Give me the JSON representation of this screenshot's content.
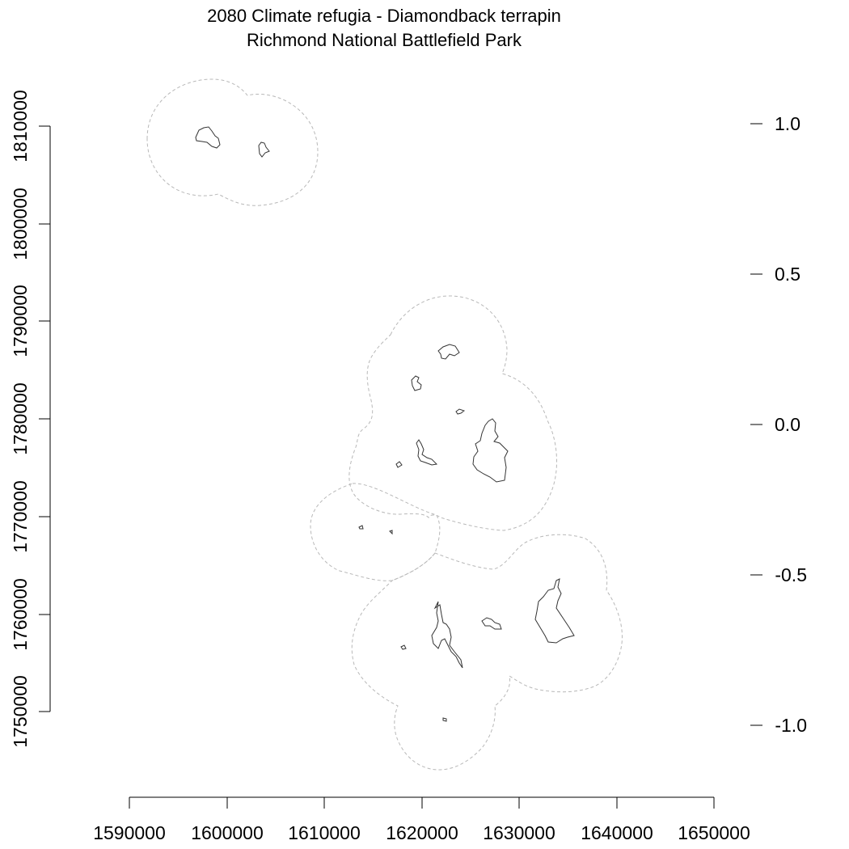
{
  "title": {
    "line1": "2080 Climate refugia - Diamondback terrapin",
    "line2": "Richmond National Battlefield Park"
  },
  "axes": {
    "x": {
      "ticks": [
        1590000,
        1600000,
        1610000,
        1620000,
        1630000,
        1640000,
        1650000
      ],
      "labels": [
        "1590000",
        "1600000",
        "1610000",
        "1620000",
        "1630000",
        "1640000",
        "1650000"
      ]
    },
    "y_left": {
      "ticks": [
        1750000,
        1760000,
        1770000,
        1780000,
        1790000,
        1800000,
        1810000
      ],
      "labels": [
        "1750000",
        "1760000",
        "1770000",
        "1780000",
        "1790000",
        "1800000",
        "1810000"
      ]
    },
    "y_right": {
      "ticks": [
        1.0,
        0.5,
        0.0,
        -0.5,
        -1.0
      ],
      "labels": [
        "1.0",
        "0.5",
        "0.0",
        "-0.5",
        "-1.0"
      ]
    }
  },
  "colors": {
    "buffer_outline": "#b8b8b8",
    "park_units": "#333333",
    "axes": "#000000"
  },
  "map_layers": {
    "buffer": "dashed light gray outline around park units",
    "park_units": "dark gray polygon outlines"
  }
}
